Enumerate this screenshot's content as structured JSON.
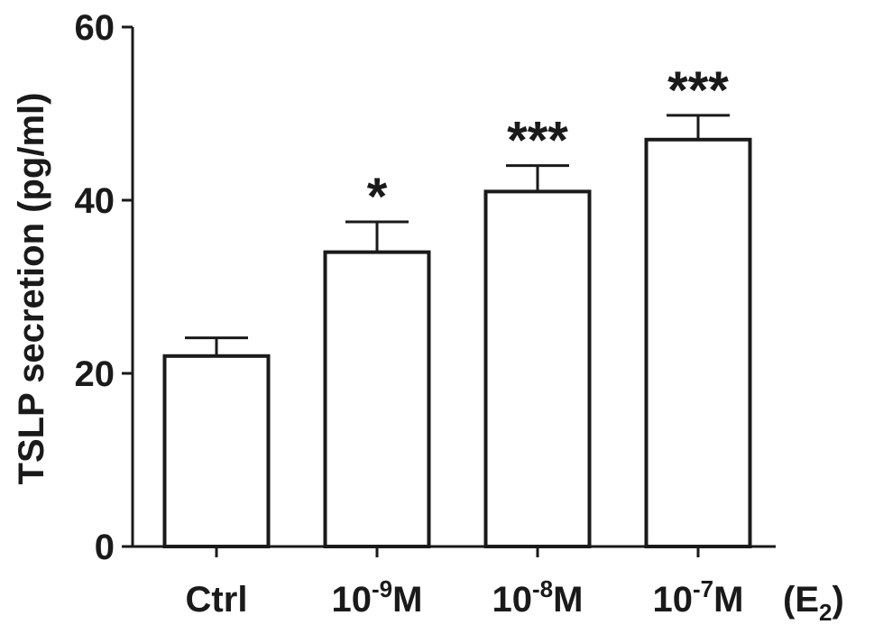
{
  "chart_data": {
    "type": "bar",
    "title": "",
    "ylabel": "TSLP secretion (pg/ml)",
    "xlabel": "(E",
    "xlabel_subscript": "2",
    "xlabel_close": ")",
    "ylim": [
      0,
      60
    ],
    "yticks": [
      0,
      20,
      40,
      60
    ],
    "ytick_labels": [
      "0",
      "20",
      "40",
      "60"
    ],
    "grid": false,
    "categories": [
      {
        "base": "Ctrl",
        "exp": "",
        "unit": ""
      },
      {
        "base": "10",
        "exp": "-9",
        "unit": "M"
      },
      {
        "base": "10",
        "exp": "-8",
        "unit": "M"
      },
      {
        "base": "10",
        "exp": "-7",
        "unit": "M"
      }
    ],
    "values": [
      22,
      34,
      41,
      47
    ],
    "errors": [
      2.1,
      3.5,
      3.0,
      2.8
    ],
    "significance": [
      "",
      "*",
      "***",
      "***"
    ],
    "colors": {
      "bar_fill": "#ffffff",
      "stroke": "#1a1a1a"
    }
  }
}
